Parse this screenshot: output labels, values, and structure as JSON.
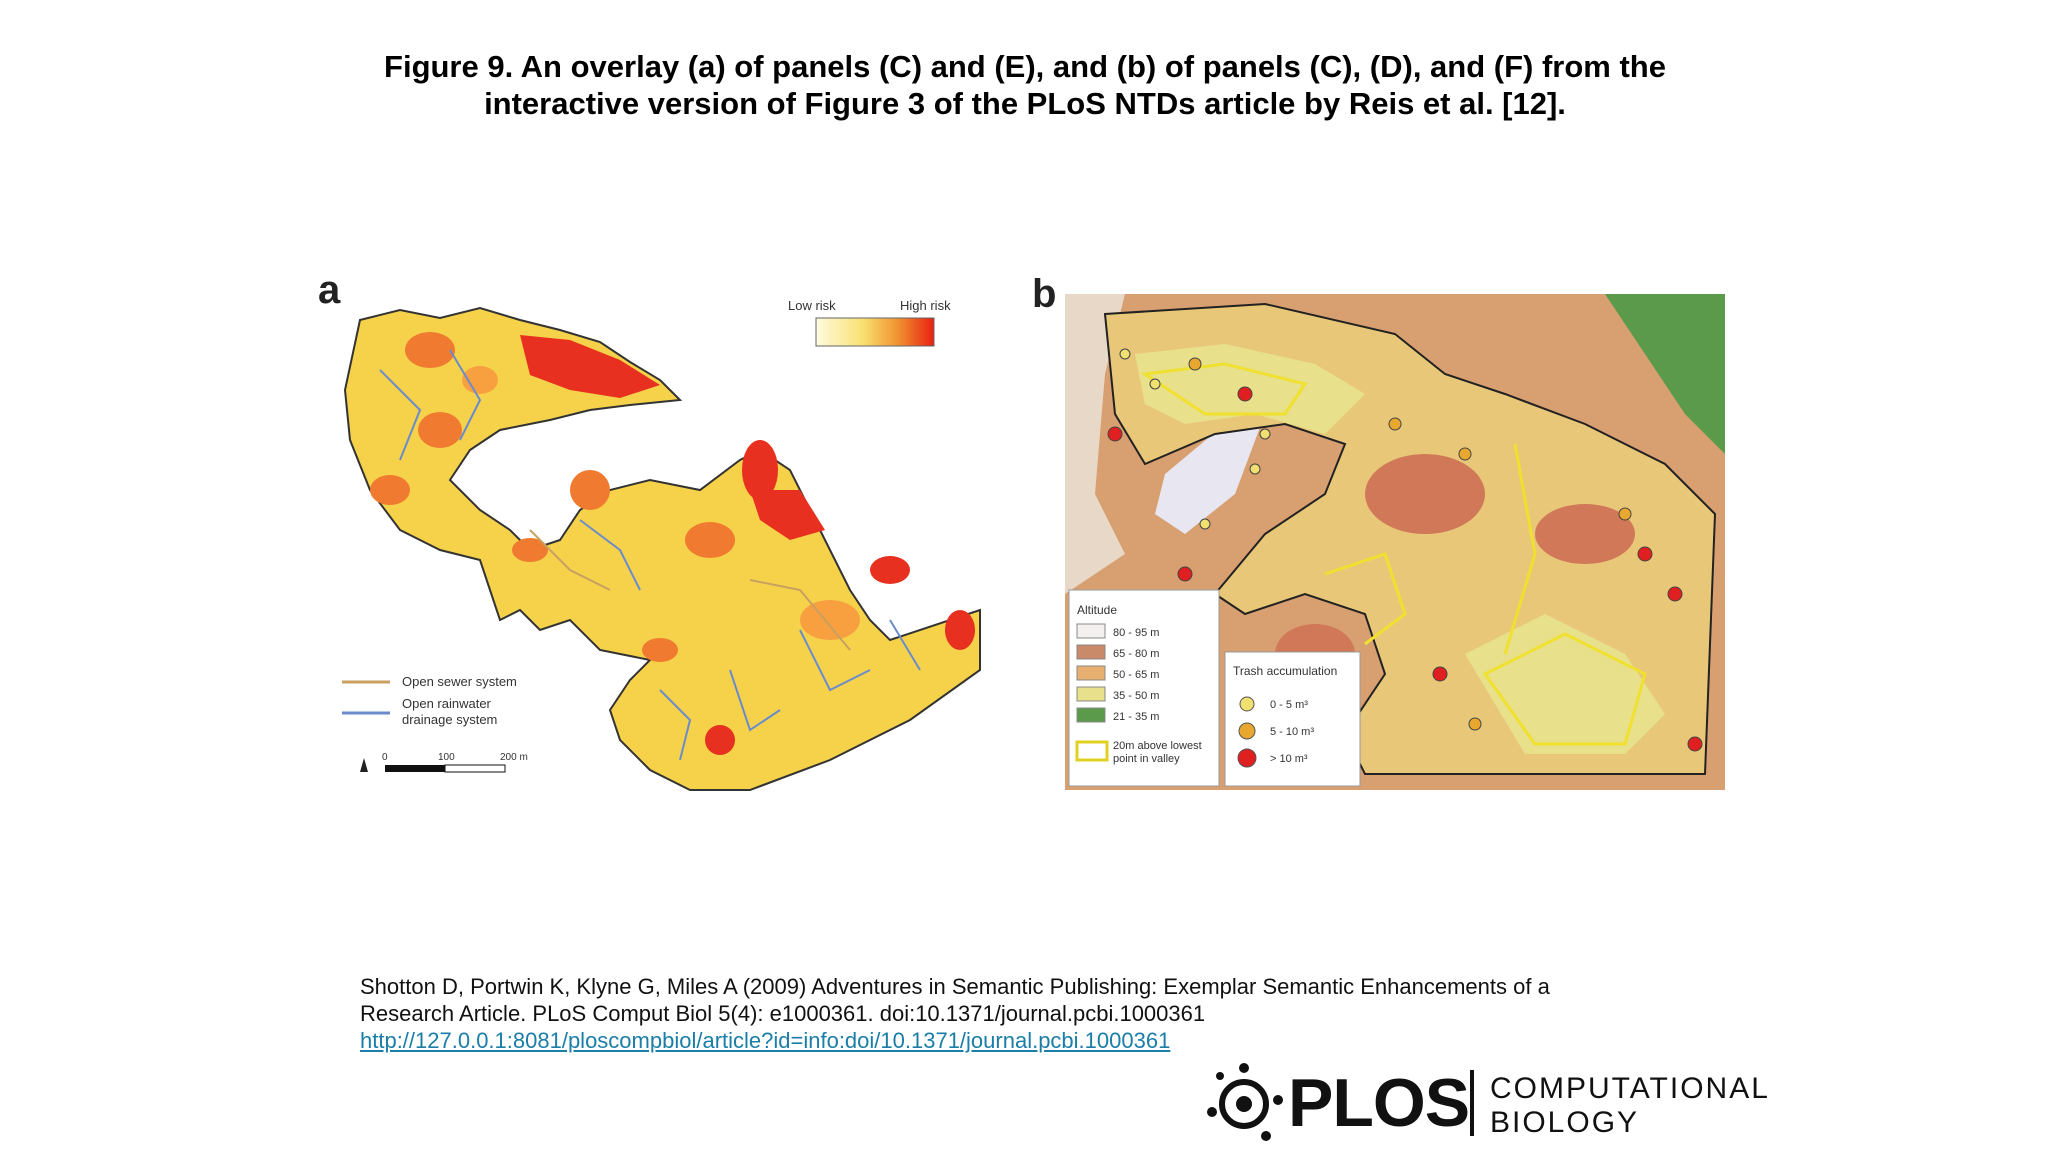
{
  "figure": {
    "title_line1": "Figure 9. An overlay (a) of panels (C) and (E), and (b) of panels (C), (D), and (F) from the",
    "title_line2": "interactive version of Figure 3 of the PLoS NTDs article by Reis et al. [12]."
  },
  "panel_a": {
    "label": "a",
    "legend_low": "Low risk",
    "legend_high": "High risk",
    "sewer_label": "Open sewer system",
    "rain_label_1": "Open rainwater",
    "rain_label_2": "drainage system",
    "scale_0": "0",
    "scale_100": "100",
    "scale_200": "200 m",
    "sewer_color": "#c8a060",
    "rain_color": "#6a8ccc"
  },
  "panel_b": {
    "label": "b",
    "altitude_title": "Altitude",
    "altitude_items": [
      "80 - 95 m",
      "65 - 80 m",
      "50 - 65 m",
      "35 - 50 m",
      "21 - 35 m"
    ],
    "altitude_colors": [
      "#f4f0f0",
      "#c98a6a",
      "#e8b070",
      "#e8e08a",
      "#5a9a4a"
    ],
    "valley_label_1": "20m above lowest",
    "valley_label_2": "point in valley",
    "trash_title": "Trash accumulation",
    "trash_items": [
      "0 - 5 m³",
      "5 - 10 m³",
      "> 10 m³"
    ],
    "trash_colors": [
      "#f0e070",
      "#e8a830",
      "#e02020"
    ]
  },
  "citation": {
    "line1": "Shotton D, Portwin K, Klyne G, Miles A (2009) Adventures in Semantic Publishing: Exemplar Semantic Enhancements of a",
    "line2": "Research Article. PLoS Comput Biol 5(4): e1000361. doi:10.1371/journal.pcbi.1000361",
    "url": "http://127.0.0.1:8081/ploscompbiol/article?id=info:doi/10.1371/journal.pcbi.1000361"
  },
  "logo": {
    "word": "PLOS",
    "sub1": "COMPUTATIONAL",
    "sub2": "BIOLOGY"
  }
}
